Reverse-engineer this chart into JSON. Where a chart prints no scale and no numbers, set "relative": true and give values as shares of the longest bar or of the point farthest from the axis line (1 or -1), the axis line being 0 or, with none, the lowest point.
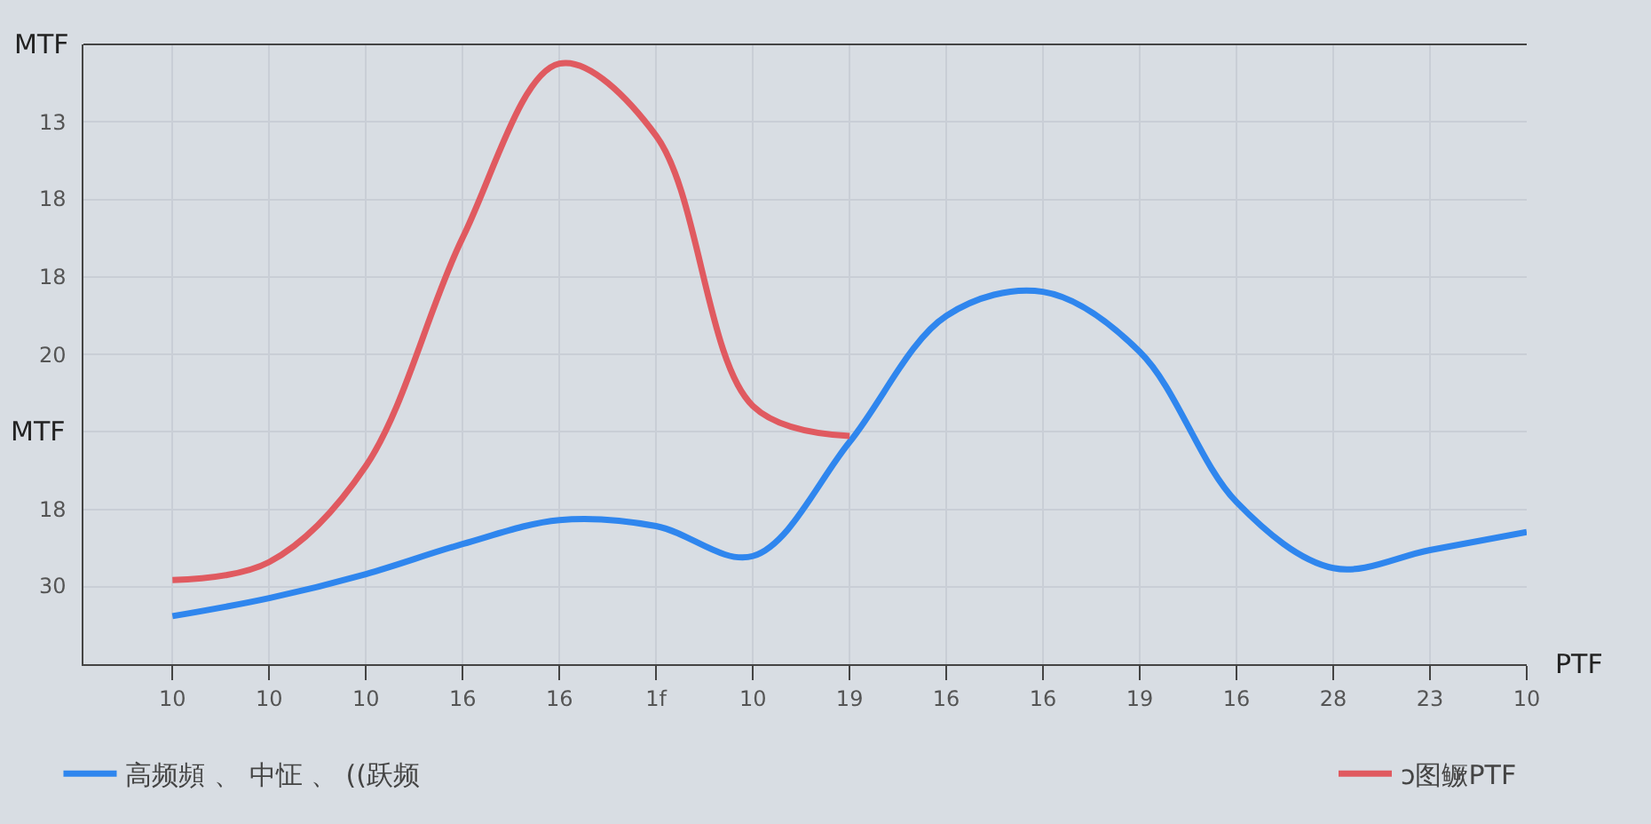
{
  "chart_data": {
    "type": "line",
    "ylabel": "MTF",
    "xlabel": "PTF",
    "relative": true,
    "categories": [
      "10",
      "10",
      "10",
      "16",
      "16",
      "1f",
      "10",
      "19",
      "16",
      "16",
      "19",
      "16",
      "28",
      "23",
      "10"
    ],
    "annotations": [
      "30",
      "18",
      "MTF",
      "20",
      "18",
      "18",
      "13"
    ],
    "grid": true,
    "legend": "bottom",
    "marker": "none",
    "line_style": "solid",
    "series": [
      {
        "name": "高频頻 、 中怔 、 ((跃频",
        "color": "#2f86ee",
        "values": [
          0.08,
          0.11,
          0.15,
          0.2,
          0.24,
          0.23,
          0.18,
          0.37,
          0.58,
          0.62,
          0.52,
          0.27,
          0.16,
          0.19,
          0.22
        ]
      },
      {
        "name": "ↄ图鳜PTF",
        "color": "#e05a60",
        "values": [
          0.14,
          0.17,
          0.33,
          0.71,
          1.0,
          0.88,
          0.43,
          0.38,
          null,
          null,
          null,
          null,
          null,
          null,
          null
        ]
      }
    ]
  }
}
